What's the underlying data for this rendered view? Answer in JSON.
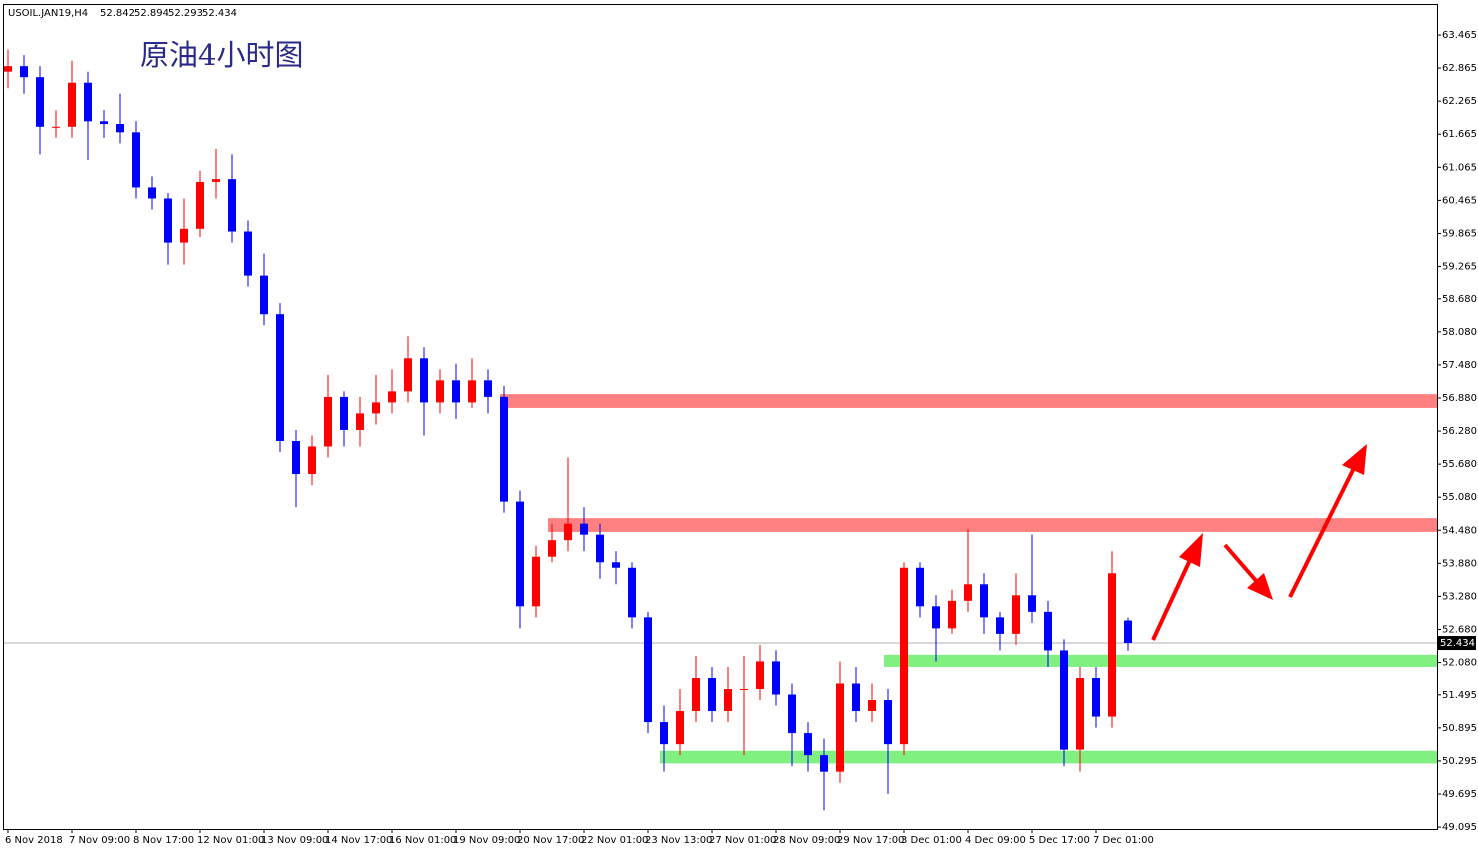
{
  "chart_data": {
    "type": "candlestick",
    "symbol": "USOIL.JAN19,H4",
    "title": "原油4小时图",
    "categories": [
      "6 Nov 2018",
      null,
      null,
      null,
      "7 Nov 09:00",
      null,
      null,
      null,
      "8 Nov 17:00",
      null,
      null,
      null,
      "12 Nov 01:00",
      null,
      null,
      null,
      "13 Nov 09:00",
      null,
      null,
      null,
      "14 Nov 17:00",
      null,
      null,
      null,
      "16 Nov 01:00",
      null,
      null,
      null,
      "19 Nov 09:00",
      null,
      null,
      null,
      "20 Nov 17:00",
      null,
      null,
      null,
      "22 Nov 01:00",
      null,
      null,
      null,
      "23 Nov 13:00",
      null,
      null,
      null,
      "27 Nov 01:00",
      null,
      null,
      null,
      "28 Nov 09:00",
      null,
      null,
      null,
      "29 Nov 17:00",
      null,
      null,
      null,
      "3 Dec 01:00",
      null,
      null,
      null,
      "4 Dec 09:00",
      null,
      null,
      null,
      "5 Dec 17:00",
      null,
      null,
      null,
      "7 Dec 01:00",
      null,
      null
    ],
    "open": [
      62.8,
      62.9,
      62.7,
      61.8,
      61.8,
      62.6,
      61.9,
      61.85,
      61.7,
      60.7,
      60.5,
      59.7,
      59.95,
      60.8,
      60.85,
      59.9,
      59.1,
      58.4,
      56.1,
      55.5,
      56.0,
      56.9,
      56.3,
      56.6,
      56.8,
      57.0,
      57.6,
      56.8,
      57.2,
      56.8,
      57.2,
      56.9,
      55.0,
      53.1,
      54.0,
      54.3,
      54.6,
      54.4,
      53.9,
      53.8,
      52.9,
      51.0,
      50.6,
      51.2,
      51.8,
      51.2,
      51.6,
      51.6,
      52.1,
      51.5,
      50.8,
      50.4,
      50.1,
      51.7,
      51.2,
      51.4,
      50.6,
      53.8,
      53.1,
      52.7,
      53.2,
      53.5,
      52.9,
      52.6,
      53.3,
      53.0,
      52.3,
      50.5,
      51.8,
      51.1,
      52.842
    ],
    "high": [
      63.2,
      63.1,
      62.9,
      62.1,
      63.0,
      62.8,
      62.1,
      62.4,
      61.9,
      60.9,
      60.6,
      60.5,
      61.0,
      61.4,
      61.3,
      60.1,
      59.5,
      58.6,
      56.3,
      56.2,
      57.3,
      57.0,
      56.9,
      57.3,
      57.4,
      58.0,
      57.8,
      57.4,
      57.5,
      57.6,
      57.4,
      57.1,
      55.2,
      54.2,
      54.6,
      55.8,
      54.9,
      54.6,
      54.1,
      53.9,
      53.0,
      51.3,
      51.6,
      52.2,
      52.0,
      52.0,
      52.2,
      52.4,
      52.3,
      51.7,
      51.0,
      50.7,
      52.1,
      52.0,
      51.7,
      51.6,
      53.9,
      53.9,
      53.3,
      53.4,
      54.5,
      53.7,
      53.0,
      53.7,
      54.4,
      53.2,
      52.5,
      52.0,
      52.0,
      54.1,
      52.894
    ],
    "low": [
      62.5,
      62.4,
      61.3,
      61.6,
      61.6,
      61.2,
      61.6,
      61.5,
      60.5,
      60.3,
      59.3,
      59.3,
      59.8,
      60.5,
      59.7,
      58.9,
      58.2,
      55.9,
      54.9,
      55.3,
      55.8,
      56.0,
      56.0,
      56.4,
      56.6,
      56.8,
      56.2,
      56.6,
      56.5,
      56.7,
      56.6,
      54.8,
      52.7,
      52.9,
      53.9,
      54.1,
      54.1,
      53.6,
      53.5,
      52.7,
      50.8,
      50.1,
      50.4,
      51.0,
      51.0,
      51.0,
      50.4,
      51.4,
      51.3,
      50.2,
      50.1,
      49.4,
      49.9,
      51.0,
      51.0,
      49.7,
      50.4,
      52.9,
      52.1,
      52.6,
      53.0,
      52.6,
      52.3,
      52.4,
      52.8,
      52.0,
      50.2,
      50.1,
      50.9,
      50.9,
      52.293
    ],
    "close": [
      62.9,
      62.7,
      61.8,
      61.8,
      62.6,
      61.9,
      61.85,
      61.7,
      60.7,
      60.5,
      59.7,
      59.95,
      60.8,
      60.85,
      59.9,
      59.1,
      58.4,
      56.1,
      55.5,
      56.0,
      56.9,
      56.3,
      56.6,
      56.8,
      57.0,
      57.6,
      56.8,
      57.2,
      56.8,
      57.2,
      56.9,
      55.0,
      53.1,
      54.0,
      54.3,
      54.6,
      54.4,
      53.9,
      53.8,
      52.9,
      51.0,
      50.6,
      51.2,
      51.8,
      51.2,
      51.6,
      51.6,
      52.1,
      51.5,
      50.8,
      50.4,
      50.1,
      51.7,
      51.2,
      51.4,
      50.6,
      53.8,
      53.1,
      52.7,
      53.2,
      53.5,
      52.9,
      52.6,
      53.3,
      53.0,
      52.3,
      50.5,
      51.8,
      51.1,
      53.7,
      52.434
    ],
    "up_color": "#ff0000",
    "down_color": "#0000ff",
    "zones": [
      {
        "low": 56.7,
        "high": 56.95,
        "start": 31,
        "color": "#ff8080"
      },
      {
        "low": 54.45,
        "high": 54.7,
        "start": 34,
        "color": "#ff8080"
      },
      {
        "low": 52.0,
        "high": 52.22,
        "start": 55,
        "color": "#80f080"
      },
      {
        "low": 50.25,
        "high": 50.48,
        "start": 41,
        "color": "#80f080"
      }
    ],
    "ylim": [
      49.06,
      64.01
    ],
    "yticks": [
      63.465,
      62.865,
      62.265,
      61.665,
      61.065,
      60.465,
      59.865,
      59.265,
      {
        "value": 58.68,
        "label": "58.680"
      },
      {
        "value": 58.08,
        "label": "58.080"
      },
      {
        "value": 57.48,
        "label": "57.480"
      },
      {
        "value": 56.88,
        "label": "56.880"
      },
      {
        "value": 56.28,
        "label": "56.280"
      },
      {
        "value": 55.68,
        "label": "55.680"
      },
      {
        "value": 55.08,
        "label": "55.080"
      },
      {
        "value": 54.48,
        "label": "54.480"
      },
      {
        "value": 53.88,
        "label": "53.880"
      },
      {
        "value": 53.28,
        "label": "53.280"
      },
      {
        "value": 52.68,
        "label": "52.680"
      },
      {
        "value": 52.08,
        "label": "52.080"
      },
      51.495,
      50.895,
      50.295,
      49.695,
      49.095
    ],
    "grid": false
  }
}
